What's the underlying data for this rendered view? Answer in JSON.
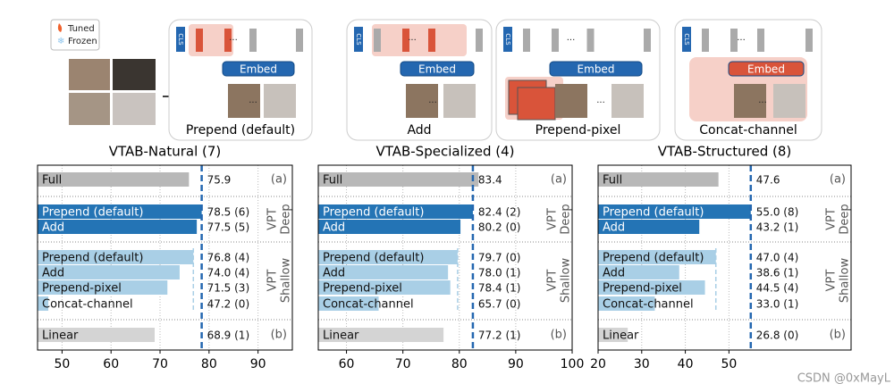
{
  "legend": {
    "tuned": "Tuned",
    "frozen": "Frozen"
  },
  "diagram": {
    "cls": "CLS",
    "embed": "Embed",
    "ellipsis": "...",
    "panels": [
      {
        "title": "Prepend (default)"
      },
      {
        "title": "Add"
      },
      {
        "title": "Prepend-pixel"
      },
      {
        "title": "Concat-channel"
      }
    ]
  },
  "chart_data": [
    {
      "type": "bar",
      "orientation": "horizontal",
      "title": "VTAB-Natural (7)",
      "categories": [
        "Full",
        "Prepend (default)",
        "Add",
        "Prepend (default)",
        "Add",
        "Prepend-pixel",
        "Concat-channel",
        "Linear"
      ],
      "values": [
        75.9,
        78.5,
        77.5,
        76.8,
        74.0,
        71.5,
        47.2,
        68.9
      ],
      "value_labels": [
        "75.9",
        "78.5 (6)",
        "77.5 (5)",
        "76.8 (4)",
        "74.0 (4)",
        "71.5 (3)",
        "47.2 (0)",
        "68.9 (1)"
      ],
      "colors": [
        "#b8b8b8",
        "#2474b5",
        "#2474b5",
        "#a9cfe6",
        "#a9cfe6",
        "#a9cfe6",
        "#a9cfe6",
        "#d4d4d4"
      ],
      "xlim": [
        45,
        97
      ],
      "xticks": [
        50,
        60,
        70,
        80,
        90
      ],
      "grid": true,
      "reference_rows": [
        1,
        3
      ],
      "groups": [
        {
          "labels": [
            "(a)"
          ],
          "rows": [
            0
          ]
        },
        {
          "labels": [
            "VPT",
            "Deep"
          ],
          "rows": [
            1,
            2
          ]
        },
        {
          "labels": [
            "VPT",
            "Shallow"
          ],
          "rows": [
            3,
            4,
            5,
            6
          ]
        },
        {
          "labels": [
            "(b)"
          ],
          "rows": [
            7
          ]
        }
      ]
    },
    {
      "type": "bar",
      "orientation": "horizontal",
      "title": "VTAB-Specialized (4)",
      "categories": [
        "Full",
        "Prepend (default)",
        "Add",
        "Prepend (default)",
        "Add",
        "Prepend-pixel",
        "Concat-channel",
        "Linear"
      ],
      "values": [
        83.4,
        82.4,
        80.2,
        79.7,
        78.0,
        78.4,
        65.7,
        77.2
      ],
      "value_labels": [
        "83.4",
        "82.4 (2)",
        "80.2 (0)",
        "79.7 (0)",
        "78.0 (1)",
        "78.4 (1)",
        "65.7 (0)",
        "77.2 (1)"
      ],
      "colors": [
        "#b8b8b8",
        "#2474b5",
        "#2474b5",
        "#a9cfe6",
        "#a9cfe6",
        "#a9cfe6",
        "#a9cfe6",
        "#d4d4d4"
      ],
      "xlim": [
        55,
        100
      ],
      "xticks": [
        60,
        70,
        80,
        90,
        100
      ],
      "grid": true,
      "reference_rows": [
        1,
        3
      ],
      "groups": [
        {
          "labels": [
            "(a)"
          ],
          "rows": [
            0
          ]
        },
        {
          "labels": [
            "VPT",
            "Deep"
          ],
          "rows": [
            1,
            2
          ]
        },
        {
          "labels": [
            "VPT",
            "Shallow"
          ],
          "rows": [
            3,
            4,
            5,
            6
          ]
        },
        {
          "labels": [
            "(b)"
          ],
          "rows": [
            7
          ]
        }
      ]
    },
    {
      "type": "bar",
      "orientation": "horizontal",
      "title": "VTAB-Structured (8)",
      "categories": [
        "Full",
        "Prepend (default)",
        "Add",
        "Prepend (default)",
        "Add",
        "Prepend-pixel",
        "Concat-channel",
        "Linear"
      ],
      "values": [
        47.6,
        55.0,
        43.2,
        47.0,
        38.6,
        44.5,
        33.0,
        26.8
      ],
      "value_labels": [
        "47.6",
        "55.0 (8)",
        "43.2 (1)",
        "47.0 (4)",
        "38.6 (1)",
        "44.5 (4)",
        "33.0 (1)",
        "26.8 (0)"
      ],
      "colors": [
        "#b8b8b8",
        "#2474b5",
        "#2474b5",
        "#a9cfe6",
        "#a9cfe6",
        "#a9cfe6",
        "#a9cfe6",
        "#d4d4d4"
      ],
      "xlim": [
        20,
        78
      ],
      "xticks": [
        20,
        30,
        40,
        50
      ],
      "grid": true,
      "reference_rows": [
        1,
        3
      ],
      "groups": [
        {
          "labels": [
            "(a)"
          ],
          "rows": [
            0
          ]
        },
        {
          "labels": [
            "VPT",
            "Deep"
          ],
          "rows": [
            1,
            2
          ]
        },
        {
          "labels": [
            "VPT",
            "Shallow"
          ],
          "rows": [
            3,
            4,
            5,
            6
          ]
        },
        {
          "labels": [
            "(b)"
          ],
          "rows": [
            7
          ]
        }
      ]
    }
  ],
  "watermark": "CSDN @0xMayL"
}
